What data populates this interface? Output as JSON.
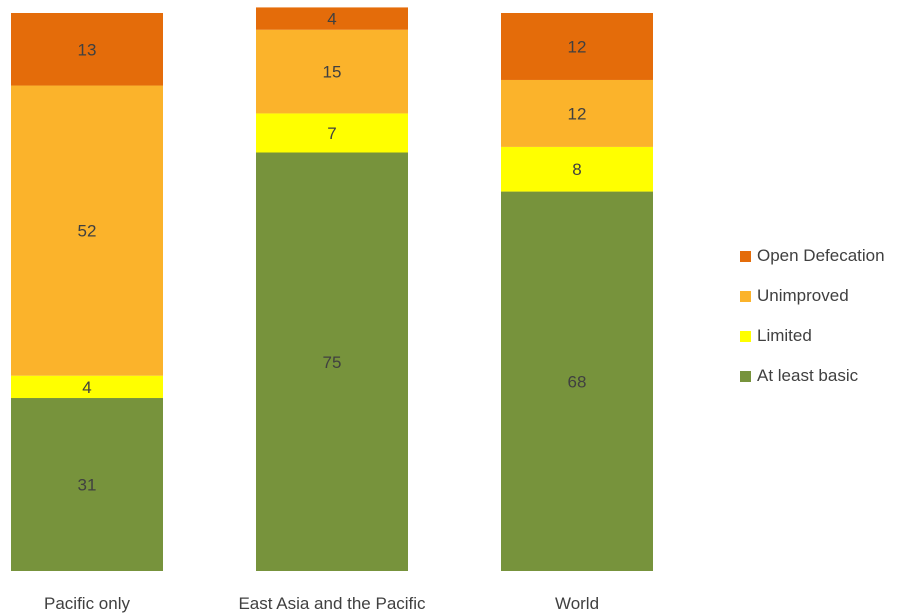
{
  "chart_data": {
    "type": "bar",
    "stacked": true,
    "categories": [
      "Pacific only",
      "East Asia and the Pacific",
      "World"
    ],
    "series": [
      {
        "name": "At least basic",
        "values": [
          31,
          75,
          68
        ],
        "color": "#77933C"
      },
      {
        "name": "Limited",
        "values": [
          4,
          7,
          8
        ],
        "color": "#FFFF00"
      },
      {
        "name": "Unimproved",
        "values": [
          52,
          15,
          12
        ],
        "color": "#FBB32B"
      },
      {
        "name": "Open Defecation",
        "values": [
          13,
          4,
          12
        ],
        "color": "#E46C0A"
      }
    ],
    "ylim": [
      0,
      100
    ],
    "legend_position": "right",
    "legend_order": [
      "Open Defecation",
      "Unimproved",
      "Limited",
      "At least basic"
    ],
    "grid": false
  }
}
